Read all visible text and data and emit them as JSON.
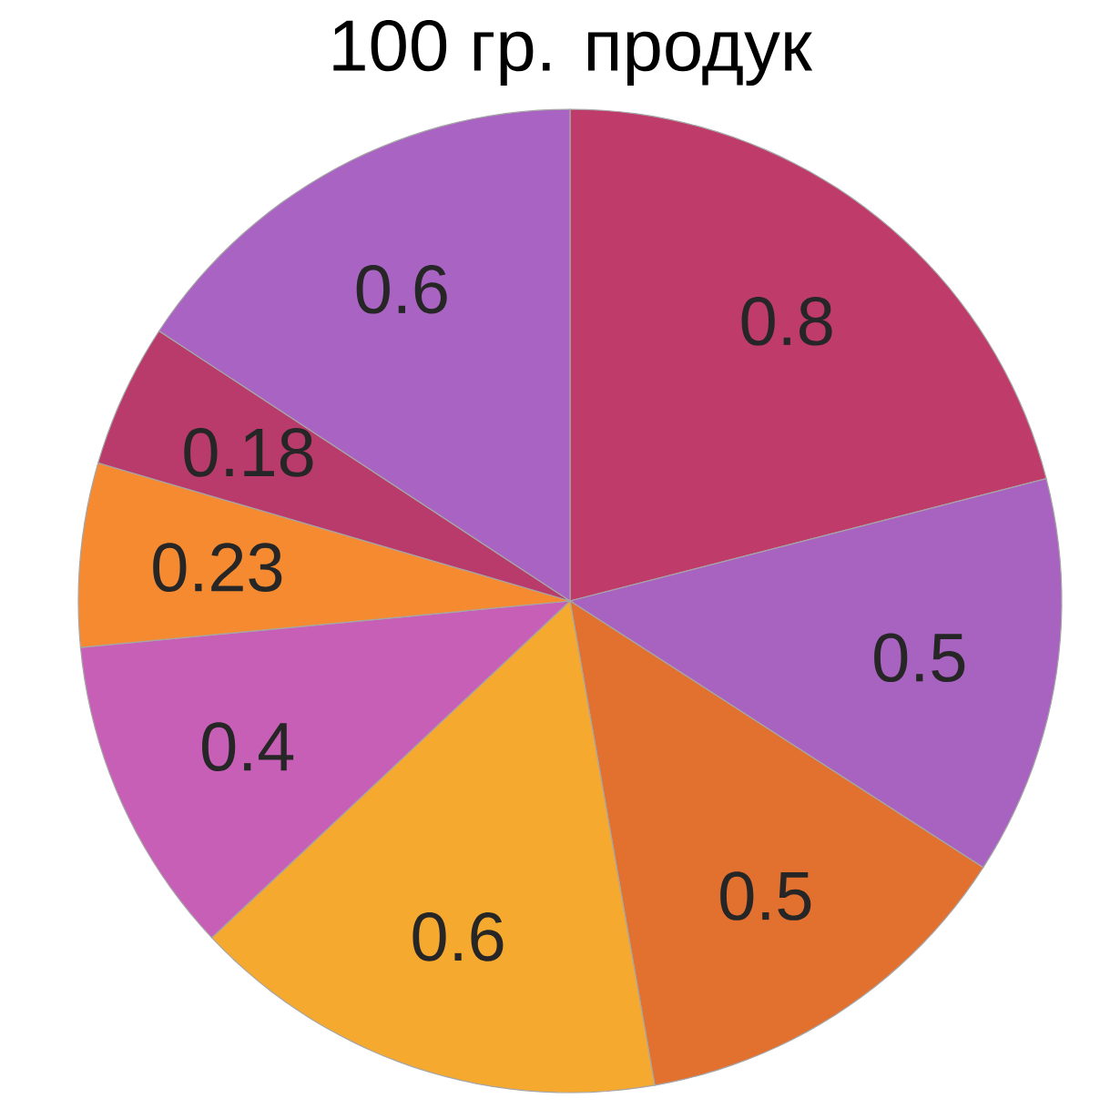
{
  "chart_data": {
    "type": "pie",
    "title": "100 гр. продук",
    "categories": [
      null,
      null,
      null,
      null,
      null,
      null,
      null,
      null
    ],
    "values": [
      0.8,
      0.5,
      0.5,
      0.6,
      0.4,
      0.23,
      0.18,
      0.6
    ],
    "colors": [
      "#bf3b6a",
      "#a862c0",
      "#e2702f",
      "#f5a92f",
      "#c75fb6",
      "#f58a30",
      "#b83b6b",
      "#a963c2"
    ],
    "data_labels": true
  }
}
